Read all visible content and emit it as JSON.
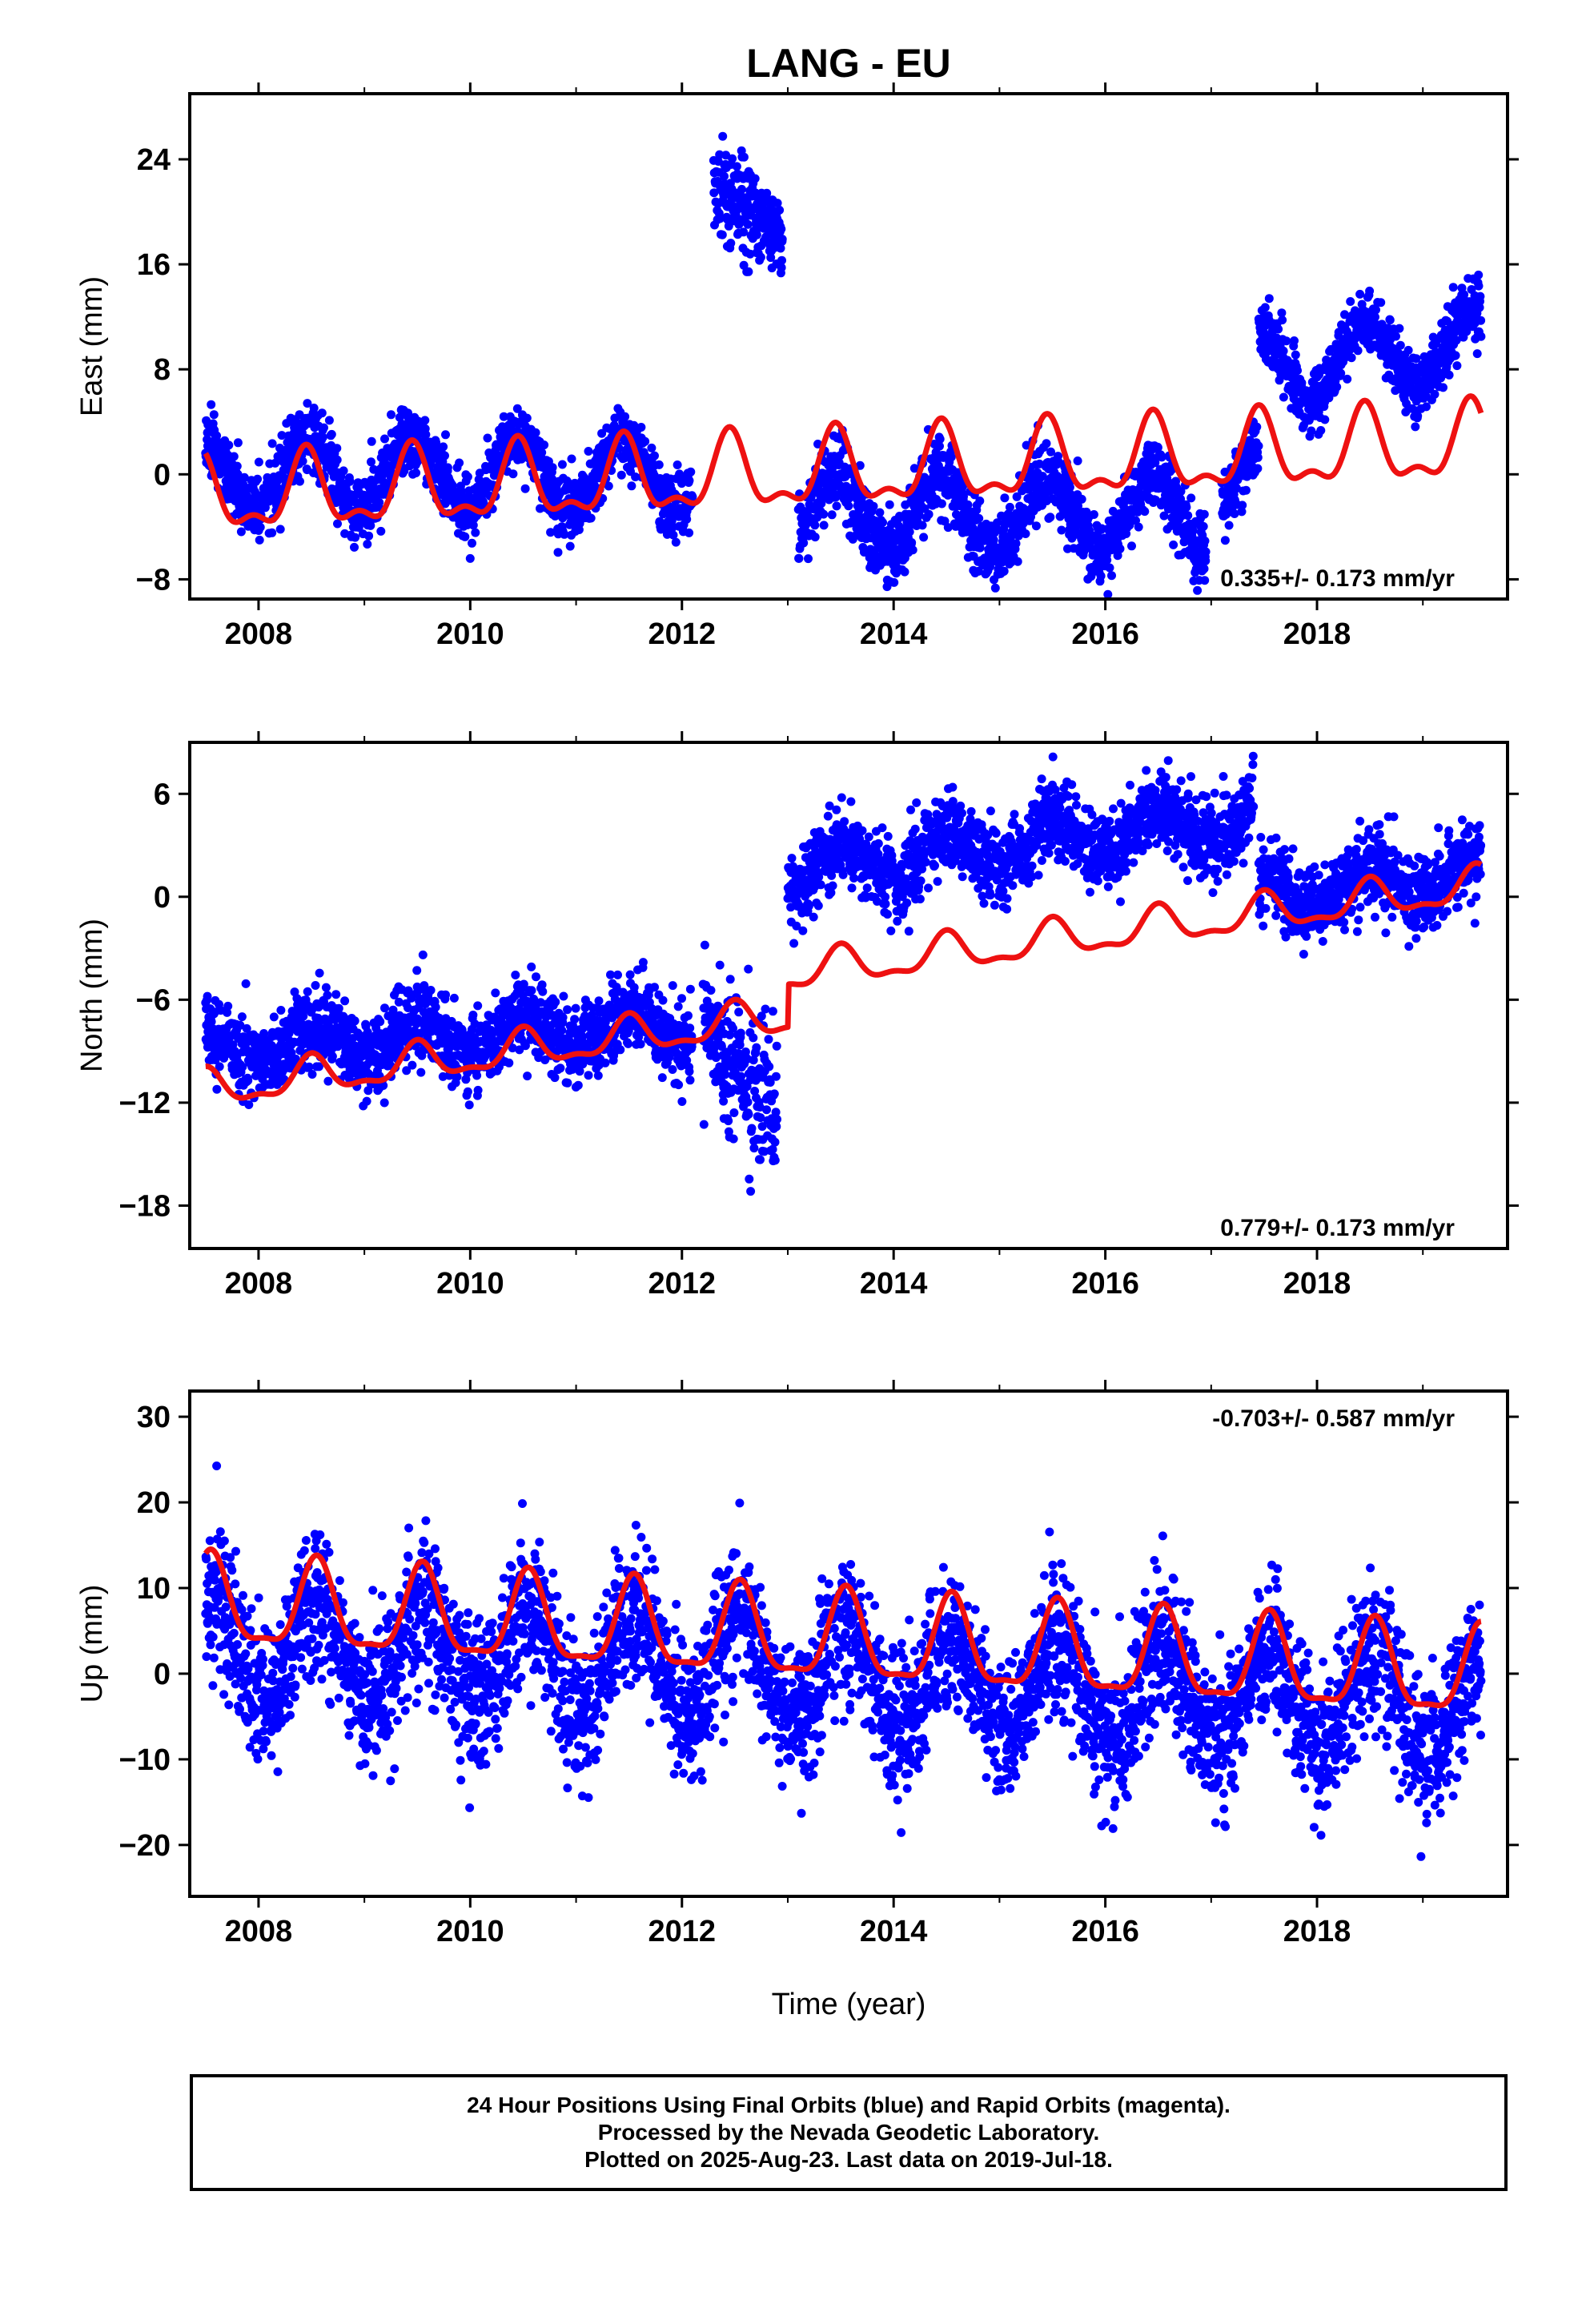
{
  "title": "LANG - EU",
  "colors": {
    "data": "#0000ff",
    "model": "#ee1111",
    "frame": "#000000"
  },
  "xlabel": "Time (year)",
  "x_ticks": [
    "2008",
    "2010",
    "2012",
    "2014",
    "2016",
    "2018"
  ],
  "xlim": [
    2007.35,
    2019.8
  ],
  "caption": [
    "24 Hour Positions Using Final Orbits (blue) and Rapid Orbits (magenta).",
    "Processed by the Nevada Geodetic Laboratory.",
    "Plotted on 2025-Aug-23. Last data on 2019-Jul-18."
  ],
  "chart_data": [
    {
      "type": "scatter",
      "ylabel": "East (mm)",
      "ylim": [
        -9.5,
        29
      ],
      "y_ticks": [
        -8,
        0,
        8,
        16,
        24
      ],
      "rate_text": "0.335+/- 0.173 mm/yr",
      "series": [
        {
          "role": "observed",
          "segments": [
            {
              "x0": 2007.5,
              "x1": 2012.1,
              "trend": [
                0.0,
                0.0
              ],
              "amp": 2.8,
              "phase": 0.45,
              "noise": 1.3
            },
            {
              "x0": 2012.3,
              "x1": 2012.95,
              "trend": [
                22.0,
                18.0
              ],
              "amp": 0.0,
              "phase": 0.45,
              "noise": 1.8
            },
            {
              "x0": 2013.1,
              "x1": 2016.95,
              "trend": [
                -3.0,
                -3.0
              ],
              "amp": 2.8,
              "phase": 0.45,
              "noise": 1.4
            },
            {
              "x0": 2017.1,
              "x1": 2017.45,
              "trend": [
                -2.0,
                0.0
              ],
              "amp": 2.0,
              "phase": 0.45,
              "noise": 1.2
            },
            {
              "x0": 2017.45,
              "x1": 2019.55,
              "trend": [
                8.0,
                10.0
              ],
              "amp": 2.8,
              "phase": 0.45,
              "noise": 1.2
            }
          ]
        },
        {
          "role": "model",
          "x_range": [
            2007.5,
            2019.55
          ],
          "base": 0.0,
          "slope": 0.335,
          "amp": 2.6,
          "amp2": 1.2,
          "phase": 0.45
        }
      ]
    },
    {
      "type": "scatter",
      "ylabel": "North (mm)",
      "ylim": [
        -20.5,
        9
      ],
      "y_ticks": [
        -18,
        -12,
        -6,
        0,
        6
      ],
      "rate_text": "0.779+/- 0.173 mm/yr",
      "series": [
        {
          "role": "observed",
          "segments": [
            {
              "x0": 2007.5,
              "x1": 2012.1,
              "trend": [
                -8.8,
                -7.5
              ],
              "amp": 1.0,
              "phase": 0.5,
              "noise": 1.1
            },
            {
              "x0": 2012.2,
              "x1": 2012.9,
              "trend": [
                -7.5,
                -12.5
              ],
              "amp": 0.0,
              "phase": 0.5,
              "noise": 2.2
            },
            {
              "x0": 2013.0,
              "x1": 2017.4,
              "trend": [
                1.5,
                4.5
              ],
              "amp": 1.2,
              "phase": 0.5,
              "noise": 1.1
            },
            {
              "x0": 2017.45,
              "x1": 2019.55,
              "trend": [
                0.0,
                1.5
              ],
              "amp": 1.0,
              "phase": 0.5,
              "noise": 1.1
            }
          ]
        },
        {
          "role": "model",
          "x_range": [
            2007.5,
            2019.55
          ],
          "base": -7.0,
          "slope": 0.779,
          "amp": 1.0,
          "amp2": 0.4,
          "phase": 0.5,
          "step_at": 2013.0,
          "step": 2.5
        }
      ]
    },
    {
      "type": "scatter",
      "ylabel": "Up (mm)",
      "ylim": [
        -26,
        33
      ],
      "y_ticks": [
        -20,
        -10,
        0,
        10,
        20,
        30
      ],
      "rate_text": "-0.703+/- 0.587 mm/yr",
      "series": [
        {
          "role": "observed",
          "segments": [
            {
              "x0": 2007.5,
              "x1": 2019.55,
              "trend": [
                3.5,
                -4.0
              ],
              "amp": 5.5,
              "phase": 0.55,
              "noise": 4.2
            }
          ]
        },
        {
          "role": "model",
          "x_range": [
            2007.5,
            2019.55
          ],
          "base": 4.2,
          "slope": -0.703,
          "amp": 5.0,
          "amp2": 1.5,
          "phase": 0.55
        }
      ]
    }
  ]
}
